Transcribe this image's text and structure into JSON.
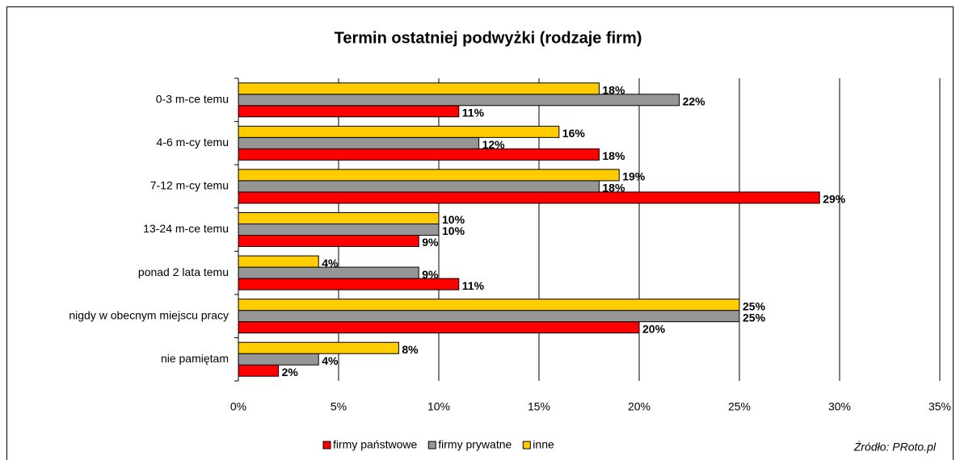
{
  "chart_data": {
    "type": "bar",
    "orientation": "horizontal",
    "title": "Termin ostatniej podwyżki (rodzaje firm)",
    "categories": [
      "0-3 m-ce temu",
      "4-6 m-cy temu",
      "7-12 m-cy temu",
      "13-24 m-ce temu",
      "ponad 2 lata temu",
      "nigdy w obecnym miejscu pracy",
      "nie pamiętam"
    ],
    "series": [
      {
        "name": "firmy państwowe",
        "color": "#ff0000",
        "values": [
          11,
          18,
          29,
          9,
          11,
          20,
          2
        ],
        "value_labels": [
          "11%",
          "18%",
          "29%",
          "9%",
          "11%",
          "20%",
          "2%"
        ]
      },
      {
        "name": "firmy prywatne",
        "color": "#969696",
        "values": [
          22,
          12,
          18,
          10,
          9,
          25,
          4
        ],
        "value_labels": [
          "22%",
          "12%",
          "18%",
          "10%",
          "9%",
          "25%",
          "4%"
        ]
      },
      {
        "name": "inne",
        "color": "#ffcc00",
        "values": [
          18,
          16,
          19,
          10,
          4,
          25,
          8
        ],
        "value_labels": [
          "18%",
          "16%",
          "19%",
          "10%",
          "4%",
          "25%",
          "8%"
        ]
      }
    ],
    "xlim": [
      0,
      35
    ],
    "xticks": [
      {
        "value": 0,
        "label": "0%"
      },
      {
        "value": 5,
        "label": "5%"
      },
      {
        "value": 10,
        "label": "10%"
      },
      {
        "value": 15,
        "label": "15%"
      },
      {
        "value": 20,
        "label": "20%"
      },
      {
        "value": 25,
        "label": "25%"
      },
      {
        "value": 30,
        "label": "30%"
      },
      {
        "value": 35,
        "label": "35%"
      }
    ],
    "grid": true,
    "legend": "bottom",
    "source": "Źródło: PRoto.pl"
  }
}
